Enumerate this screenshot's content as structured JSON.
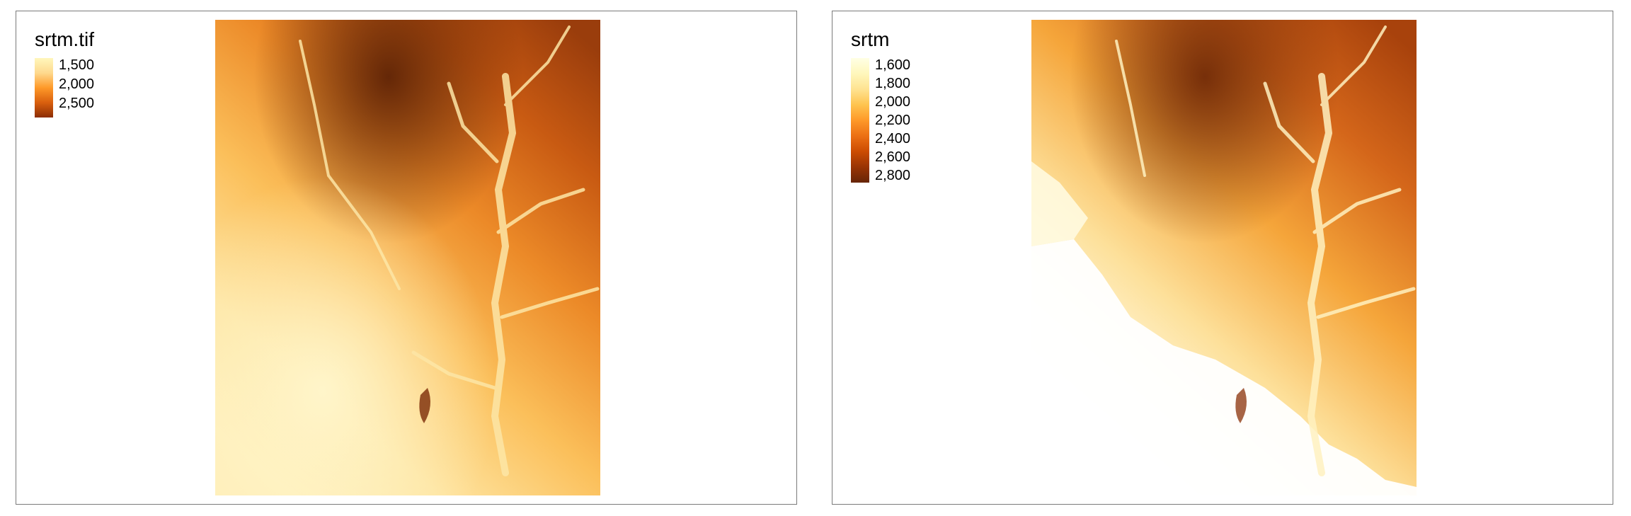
{
  "panels": [
    {
      "legend": {
        "title": "srtm.tif",
        "labels": [
          "1,500",
          "2,000",
          "2,500"
        ]
      }
    },
    {
      "legend": {
        "title": "srtm",
        "labels": [
          "1,600",
          "1,800",
          "2,000",
          "2,200",
          "2,400",
          "2,600",
          "2,800"
        ]
      }
    }
  ],
  "colors": {
    "low": "#ffffd4",
    "mid_low": "#fed98e",
    "mid": "#fe9929",
    "mid_high": "#d95f0e",
    "high": "#993404",
    "highest": "#5e2306",
    "frame": "#7a7a7a"
  }
}
